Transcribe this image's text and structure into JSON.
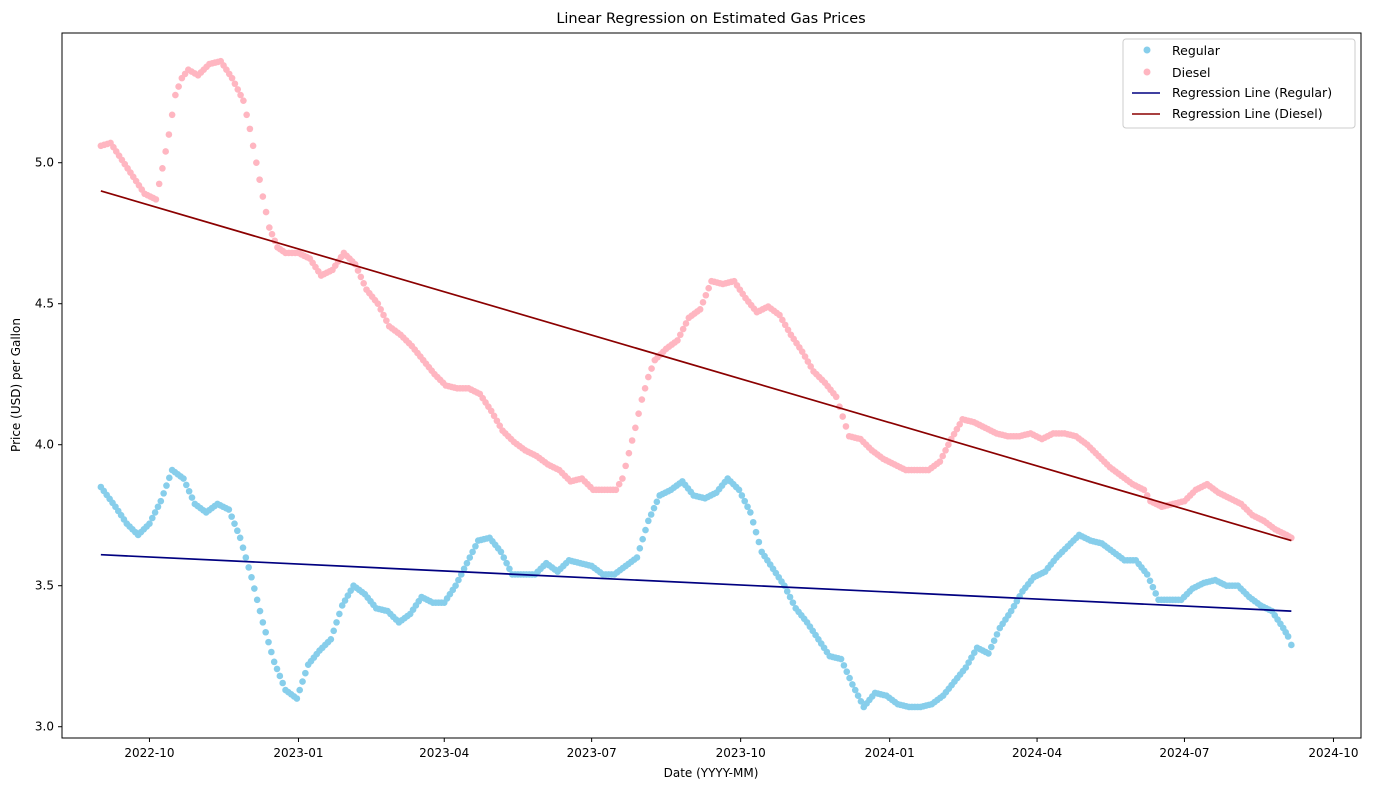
{
  "chart_data": {
    "type": "scatter",
    "title": "Linear Regression on Estimated Gas Prices",
    "xlabel": "Date (YYYY-MM)",
    "ylabel": "Price (USD) per Gallon",
    "xlim": [
      "2022-08-08",
      "2024-10-18"
    ],
    "ylim": [
      2.96,
      5.46
    ],
    "x_ticks": [
      "2022-10",
      "2023-01",
      "2023-04",
      "2023-07",
      "2023-10",
      "2024-01",
      "2024-04",
      "2024-07",
      "2024-10"
    ],
    "y_ticks": [
      "3.0",
      "3.5",
      "4.0",
      "4.5",
      "5.0"
    ],
    "grid": false,
    "legend_position": "top-right",
    "colors": {
      "regular": "#87ceeb",
      "diesel": "#ffb6c1",
      "regression_regular": "#000080",
      "regression_diesel": "#8b0000"
    },
    "series": [
      {
        "name": "Regular",
        "kind": "scatter",
        "points": [
          [
            "2022-09-01",
            3.85
          ],
          [
            "2022-09-10",
            3.78
          ],
          [
            "2022-09-17",
            3.72
          ],
          [
            "2022-09-24",
            3.68
          ],
          [
            "2022-10-01",
            3.72
          ],
          [
            "2022-10-08",
            3.8
          ],
          [
            "2022-10-15",
            3.91
          ],
          [
            "2022-10-22",
            3.88
          ],
          [
            "2022-10-29",
            3.79
          ],
          [
            "2022-11-05",
            3.76
          ],
          [
            "2022-11-12",
            3.79
          ],
          [
            "2022-11-19",
            3.77
          ],
          [
            "2022-11-26",
            3.67
          ],
          [
            "2022-12-03",
            3.53
          ],
          [
            "2022-12-10",
            3.37
          ],
          [
            "2022-12-17",
            3.23
          ],
          [
            "2022-12-24",
            3.13
          ],
          [
            "2022-12-31",
            3.1
          ],
          [
            "2023-01-07",
            3.22
          ],
          [
            "2023-01-14",
            3.27
          ],
          [
            "2023-01-21",
            3.31
          ],
          [
            "2023-01-28",
            3.43
          ],
          [
            "2023-02-04",
            3.5
          ],
          [
            "2023-02-11",
            3.47
          ],
          [
            "2023-02-18",
            3.42
          ],
          [
            "2023-02-25",
            3.41
          ],
          [
            "2023-03-04",
            3.37
          ],
          [
            "2023-03-11",
            3.4
          ],
          [
            "2023-03-18",
            3.46
          ],
          [
            "2023-03-25",
            3.44
          ],
          [
            "2023-04-01",
            3.44
          ],
          [
            "2023-04-08",
            3.5
          ],
          [
            "2023-04-15",
            3.58
          ],
          [
            "2023-04-22",
            3.66
          ],
          [
            "2023-04-29",
            3.67
          ],
          [
            "2023-05-06",
            3.62
          ],
          [
            "2023-05-13",
            3.54
          ],
          [
            "2023-05-20",
            3.54
          ],
          [
            "2023-05-27",
            3.54
          ],
          [
            "2023-06-03",
            3.58
          ],
          [
            "2023-06-10",
            3.55
          ],
          [
            "2023-06-17",
            3.59
          ],
          [
            "2023-06-24",
            3.58
          ],
          [
            "2023-07-01",
            3.57
          ],
          [
            "2023-07-08",
            3.54
          ],
          [
            "2023-07-15",
            3.54
          ],
          [
            "2023-07-22",
            3.57
          ],
          [
            "2023-07-29",
            3.6
          ],
          [
            "2023-08-05",
            3.73
          ],
          [
            "2023-08-12",
            3.82
          ],
          [
            "2023-08-19",
            3.84
          ],
          [
            "2023-08-26",
            3.87
          ],
          [
            "2023-09-02",
            3.82
          ],
          [
            "2023-09-09",
            3.81
          ],
          [
            "2023-09-16",
            3.83
          ],
          [
            "2023-09-23",
            3.88
          ],
          [
            "2023-09-30",
            3.84
          ],
          [
            "2023-10-07",
            3.76
          ],
          [
            "2023-10-14",
            3.62
          ],
          [
            "2023-10-21",
            3.56
          ],
          [
            "2023-10-28",
            3.5
          ],
          [
            "2023-11-04",
            3.42
          ],
          [
            "2023-11-11",
            3.37
          ],
          [
            "2023-11-18",
            3.31
          ],
          [
            "2023-11-25",
            3.25
          ],
          [
            "2023-12-02",
            3.24
          ],
          [
            "2023-12-09",
            3.15
          ],
          [
            "2023-12-16",
            3.07
          ],
          [
            "2023-12-23",
            3.12
          ],
          [
            "2023-12-30",
            3.11
          ],
          [
            "2024-01-06",
            3.08
          ],
          [
            "2024-01-13",
            3.07
          ],
          [
            "2024-01-20",
            3.07
          ],
          [
            "2024-01-27",
            3.08
          ],
          [
            "2024-02-03",
            3.11
          ],
          [
            "2024-02-10",
            3.16
          ],
          [
            "2024-02-17",
            3.21
          ],
          [
            "2024-02-24",
            3.28
          ],
          [
            "2024-03-02",
            3.26
          ],
          [
            "2024-03-09",
            3.35
          ],
          [
            "2024-03-16",
            3.41
          ],
          [
            "2024-03-23",
            3.48
          ],
          [
            "2024-03-30",
            3.53
          ],
          [
            "2024-04-06",
            3.55
          ],
          [
            "2024-04-13",
            3.6
          ],
          [
            "2024-04-20",
            3.64
          ],
          [
            "2024-04-27",
            3.68
          ],
          [
            "2024-05-04",
            3.66
          ],
          [
            "2024-05-11",
            3.65
          ],
          [
            "2024-05-18",
            3.62
          ],
          [
            "2024-05-25",
            3.59
          ],
          [
            "2024-06-01",
            3.59
          ],
          [
            "2024-06-08",
            3.54
          ],
          [
            "2024-06-15",
            3.45
          ],
          [
            "2024-06-22",
            3.45
          ],
          [
            "2024-06-29",
            3.45
          ],
          [
            "2024-07-06",
            3.49
          ],
          [
            "2024-07-13",
            3.51
          ],
          [
            "2024-07-20",
            3.52
          ],
          [
            "2024-07-27",
            3.5
          ],
          [
            "2024-08-03",
            3.5
          ],
          [
            "2024-08-10",
            3.46
          ],
          [
            "2024-08-17",
            3.43
          ],
          [
            "2024-08-24",
            3.41
          ],
          [
            "2024-08-31",
            3.35
          ],
          [
            "2024-09-03",
            3.32
          ],
          [
            "2024-09-05",
            3.29
          ]
        ]
      },
      {
        "name": "Diesel",
        "kind": "scatter",
        "points": [
          [
            "2022-09-01",
            5.06
          ],
          [
            "2022-09-07",
            5.07
          ],
          [
            "2022-09-14",
            5.01
          ],
          [
            "2022-09-21",
            4.95
          ],
          [
            "2022-09-28",
            4.89
          ],
          [
            "2022-10-05",
            4.87
          ],
          [
            "2022-10-09",
            4.98
          ],
          [
            "2022-10-13",
            5.1
          ],
          [
            "2022-10-17",
            5.24
          ],
          [
            "2022-10-21",
            5.3
          ],
          [
            "2022-10-25",
            5.33
          ],
          [
            "2022-10-31",
            5.31
          ],
          [
            "2022-11-07",
            5.35
          ],
          [
            "2022-11-14",
            5.36
          ],
          [
            "2022-11-21",
            5.3
          ],
          [
            "2022-11-28",
            5.22
          ],
          [
            "2022-12-02",
            5.12
          ],
          [
            "2022-12-06",
            5.0
          ],
          [
            "2022-12-10",
            4.88
          ],
          [
            "2022-12-14",
            4.77
          ],
          [
            "2022-12-19",
            4.7
          ],
          [
            "2022-12-24",
            4.68
          ],
          [
            "2023-01-01",
            4.68
          ],
          [
            "2023-01-08",
            4.66
          ],
          [
            "2023-01-15",
            4.6
          ],
          [
            "2023-01-22",
            4.62
          ],
          [
            "2023-01-29",
            4.68
          ],
          [
            "2023-02-05",
            4.64
          ],
          [
            "2023-02-12",
            4.55
          ],
          [
            "2023-02-19",
            4.5
          ],
          [
            "2023-02-26",
            4.42
          ],
          [
            "2023-03-05",
            4.39
          ],
          [
            "2023-03-12",
            4.35
          ],
          [
            "2023-03-19",
            4.3
          ],
          [
            "2023-03-26",
            4.25
          ],
          [
            "2023-04-02",
            4.21
          ],
          [
            "2023-04-09",
            4.2
          ],
          [
            "2023-04-16",
            4.2
          ],
          [
            "2023-04-23",
            4.18
          ],
          [
            "2023-04-30",
            4.12
          ],
          [
            "2023-05-07",
            4.05
          ],
          [
            "2023-05-14",
            4.01
          ],
          [
            "2023-05-21",
            3.98
          ],
          [
            "2023-05-28",
            3.96
          ],
          [
            "2023-06-04",
            3.93
          ],
          [
            "2023-06-11",
            3.91
          ],
          [
            "2023-06-18",
            3.87
          ],
          [
            "2023-06-25",
            3.88
          ],
          [
            "2023-07-02",
            3.84
          ],
          [
            "2023-07-09",
            3.84
          ],
          [
            "2023-07-16",
            3.84
          ],
          [
            "2023-07-20",
            3.88
          ],
          [
            "2023-07-24",
            3.97
          ],
          [
            "2023-07-28",
            4.06
          ],
          [
            "2023-08-01",
            4.16
          ],
          [
            "2023-08-05",
            4.24
          ],
          [
            "2023-08-09",
            4.3
          ],
          [
            "2023-08-16",
            4.34
          ],
          [
            "2023-08-23",
            4.37
          ],
          [
            "2023-08-30",
            4.45
          ],
          [
            "2023-09-06",
            4.48
          ],
          [
            "2023-09-13",
            4.58
          ],
          [
            "2023-09-20",
            4.57
          ],
          [
            "2023-09-27",
            4.58
          ],
          [
            "2023-10-04",
            4.52
          ],
          [
            "2023-10-11",
            4.47
          ],
          [
            "2023-10-18",
            4.49
          ],
          [
            "2023-10-25",
            4.46
          ],
          [
            "2023-11-01",
            4.39
          ],
          [
            "2023-11-08",
            4.33
          ],
          [
            "2023-11-15",
            4.26
          ],
          [
            "2023-11-22",
            4.22
          ],
          [
            "2023-11-29",
            4.17
          ],
          [
            "2023-12-03",
            4.1
          ],
          [
            "2023-12-07",
            4.03
          ],
          [
            "2023-12-14",
            4.02
          ],
          [
            "2023-12-21",
            3.98
          ],
          [
            "2023-12-28",
            3.95
          ],
          [
            "2024-01-04",
            3.93
          ],
          [
            "2024-01-11",
            3.91
          ],
          [
            "2024-01-18",
            3.91
          ],
          [
            "2024-01-25",
            3.91
          ],
          [
            "2024-02-01",
            3.94
          ],
          [
            "2024-02-08",
            4.02
          ],
          [
            "2024-02-15",
            4.09
          ],
          [
            "2024-02-22",
            4.08
          ],
          [
            "2024-02-29",
            4.06
          ],
          [
            "2024-03-07",
            4.04
          ],
          [
            "2024-03-14",
            4.03
          ],
          [
            "2024-03-21",
            4.03
          ],
          [
            "2024-03-28",
            4.04
          ],
          [
            "2024-04-04",
            4.02
          ],
          [
            "2024-04-11",
            4.04
          ],
          [
            "2024-04-18",
            4.04
          ],
          [
            "2024-04-25",
            4.03
          ],
          [
            "2024-05-02",
            4.0
          ],
          [
            "2024-05-09",
            3.96
          ],
          [
            "2024-05-16",
            3.92
          ],
          [
            "2024-05-23",
            3.89
          ],
          [
            "2024-05-30",
            3.86
          ],
          [
            "2024-06-06",
            3.84
          ],
          [
            "2024-06-10",
            3.8
          ],
          [
            "2024-06-17",
            3.78
          ],
          [
            "2024-06-24",
            3.79
          ],
          [
            "2024-07-01",
            3.8
          ],
          [
            "2024-07-08",
            3.84
          ],
          [
            "2024-07-15",
            3.86
          ],
          [
            "2024-07-22",
            3.83
          ],
          [
            "2024-07-29",
            3.81
          ],
          [
            "2024-08-05",
            3.79
          ],
          [
            "2024-08-12",
            3.75
          ],
          [
            "2024-08-19",
            3.73
          ],
          [
            "2024-08-26",
            3.7
          ],
          [
            "2024-09-02",
            3.68
          ],
          [
            "2024-09-05",
            3.67
          ]
        ]
      },
      {
        "name": "Regression Line (Regular)",
        "kind": "line",
        "points": [
          [
            "2022-09-01",
            3.61
          ],
          [
            "2024-09-05",
            3.41
          ]
        ]
      },
      {
        "name": "Regression Line (Diesel)",
        "kind": "line",
        "points": [
          [
            "2022-09-01",
            4.9
          ],
          [
            "2024-09-05",
            3.66
          ]
        ]
      }
    ]
  }
}
